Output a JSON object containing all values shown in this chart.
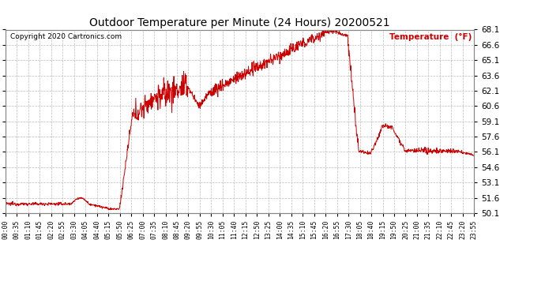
{
  "title": "Outdoor Temperature per Minute (24 Hours) 20200521",
  "copyright": "Copyright 2020 Cartronics.com",
  "legend_label": "Temperature  (°F)",
  "line_color": "#cc0000",
  "background_color": "#ffffff",
  "grid_color": "#bbbbbb",
  "yticks": [
    50.1,
    51.6,
    53.1,
    54.6,
    56.1,
    57.6,
    59.1,
    60.6,
    62.1,
    63.6,
    65.1,
    66.6,
    68.1
  ],
  "ymin": 50.1,
  "ymax": 68.1,
  "x_tick_labels": [
    "00:00",
    "00:35",
    "01:10",
    "01:45",
    "02:20",
    "02:55",
    "03:30",
    "04:05",
    "04:40",
    "05:15",
    "05:50",
    "06:25",
    "07:00",
    "07:35",
    "08:10",
    "08:45",
    "09:20",
    "09:55",
    "10:30",
    "11:05",
    "11:40",
    "12:15",
    "12:50",
    "13:25",
    "14:00",
    "14:35",
    "15:10",
    "15:45",
    "16:20",
    "16:55",
    "17:30",
    "18:05",
    "18:40",
    "19:15",
    "19:50",
    "20:25",
    "21:00",
    "21:35",
    "22:10",
    "22:45",
    "23:20",
    "23:55"
  ],
  "num_minutes": 1440
}
